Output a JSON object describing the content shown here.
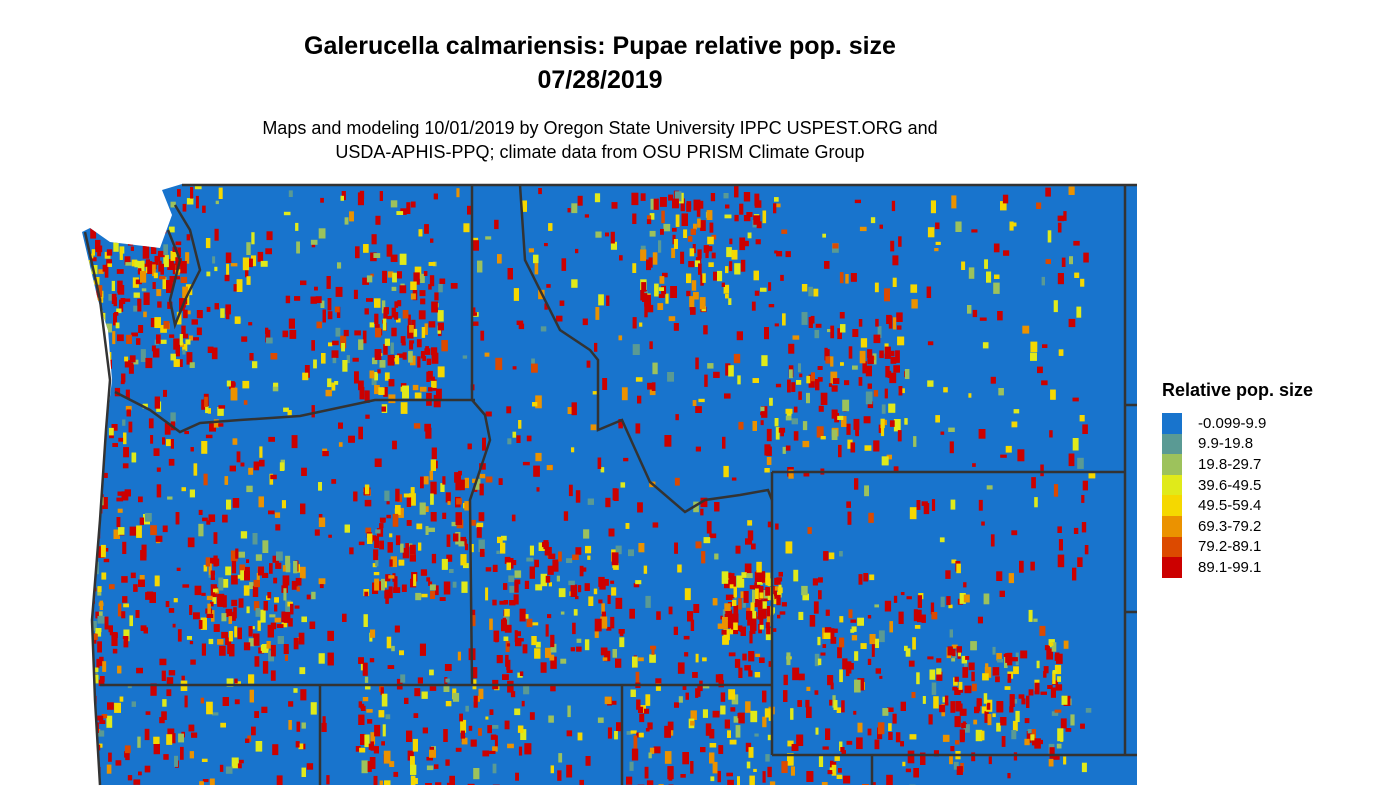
{
  "title": {
    "line1": "Galerucella calmariensis: Pupae relative pop. size",
    "line2": "07/28/2019"
  },
  "subtitle": {
    "line1": "Maps and modeling 10/01/2019 by Oregon State University IPPC USPEST.ORG and",
    "line2": "USDA-APHIS-PPQ; climate data from OSU PRISM Climate Group"
  },
  "legend": {
    "title": "Relative pop. size",
    "items": [
      {
        "label": "-0.099-9.9",
        "color": "#1874CD"
      },
      {
        "label": "9.9-19.8",
        "color": "#5A9A94"
      },
      {
        "label": "19.8-29.7",
        "color": "#9DC25C"
      },
      {
        "label": "39.6-49.5",
        "color": "#E0EA1A"
      },
      {
        "label": "49.5-59.4",
        "color": "#F5D800"
      },
      {
        "label": "69.3-79.2",
        "color": "#EB9200"
      },
      {
        "label": "79.2-89.1",
        "color": "#DC4A00"
      },
      {
        "label": "89.1-99.1",
        "color": "#CC0000"
      }
    ]
  },
  "map": {
    "border_color": "#333333",
    "regions": "Pacific Northwest (WA, OR, ID, MT, WY and neighbouring states)"
  }
}
